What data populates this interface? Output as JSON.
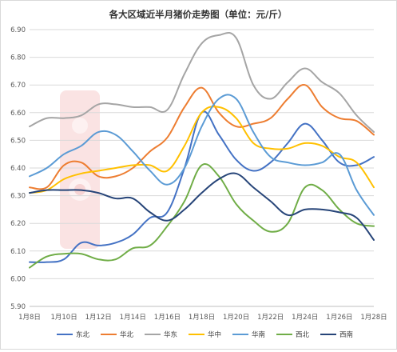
{
  "chart_data": {
    "type": "line",
    "title": "各大区域近半月猪价走势图（单位：元/斤）",
    "xlabel": "",
    "ylabel": "",
    "x": [
      "1月8日",
      "1月9日",
      "1月10日",
      "1月11日",
      "1月12日",
      "1月13日",
      "1月14日",
      "1月15日",
      "1月16日",
      "1月17日",
      "1月18日",
      "1月19日",
      "1月20日",
      "1月21日",
      "1月22日",
      "1月23日",
      "1月24日",
      "1月25日",
      "1月26日",
      "1月27日",
      "1月28日"
    ],
    "x_tick_labels": [
      "1月8日",
      "1月10日",
      "1月12日",
      "1月14日",
      "1月16日",
      "1月18日",
      "1月20日",
      "1月22日",
      "1月24日",
      "1月26日",
      "1月28日"
    ],
    "ylim": [
      5.9,
      6.9
    ],
    "y_tick_labels": [
      "5.90",
      "6.00",
      "6.10",
      "6.20",
      "6.30",
      "6.40",
      "6.50",
      "6.60",
      "6.70",
      "6.80",
      "6.90"
    ],
    "grid": true,
    "legend_position": "bottom",
    "series": [
      {
        "name": "东北",
        "color": "#4472c4",
        "values": [
          6.06,
          6.06,
          6.07,
          6.13,
          6.12,
          6.13,
          6.16,
          6.22,
          6.24,
          6.4,
          6.6,
          6.52,
          6.43,
          6.39,
          6.42,
          6.49,
          6.56,
          6.5,
          6.42,
          6.41,
          6.44
        ]
      },
      {
        "name": "华北",
        "color": "#ed7d31",
        "values": [
          6.33,
          6.33,
          6.41,
          6.42,
          6.37,
          6.37,
          6.4,
          6.46,
          6.51,
          6.62,
          6.69,
          6.6,
          6.55,
          6.56,
          6.58,
          6.65,
          6.7,
          6.62,
          6.58,
          6.57,
          6.52
        ]
      },
      {
        "name": "华东",
        "color": "#a5a5a5",
        "values": [
          6.55,
          6.58,
          6.58,
          6.59,
          6.63,
          6.63,
          6.62,
          6.62,
          6.61,
          6.74,
          6.85,
          6.88,
          6.87,
          6.7,
          6.65,
          6.71,
          6.76,
          6.71,
          6.67,
          6.59,
          6.53
        ]
      },
      {
        "name": "华中",
        "color": "#ffc000",
        "values": [
          6.31,
          6.32,
          6.36,
          6.38,
          6.39,
          6.4,
          6.41,
          6.41,
          6.39,
          6.48,
          6.6,
          6.62,
          6.58,
          6.49,
          6.47,
          6.47,
          6.49,
          6.48,
          6.44,
          6.42,
          6.33
        ]
      },
      {
        "name": "华南",
        "color": "#5b9bd5",
        "values": [
          6.37,
          6.4,
          6.45,
          6.48,
          6.53,
          6.52,
          6.46,
          6.39,
          6.34,
          6.4,
          6.55,
          6.65,
          6.65,
          6.53,
          6.44,
          6.42,
          6.41,
          6.42,
          6.45,
          6.32,
          6.23
        ]
      },
      {
        "name": "西北",
        "color": "#70ad47",
        "values": [
          6.04,
          6.08,
          6.09,
          6.09,
          6.07,
          6.07,
          6.11,
          6.12,
          6.19,
          6.28,
          6.41,
          6.37,
          6.27,
          6.21,
          6.17,
          6.2,
          6.33,
          6.32,
          6.25,
          6.2,
          6.19
        ]
      },
      {
        "name": "西南",
        "color": "#264478",
        "values": [
          6.31,
          6.32,
          6.32,
          6.32,
          6.31,
          6.29,
          6.29,
          6.24,
          6.21,
          6.25,
          6.31,
          6.36,
          6.38,
          6.33,
          6.28,
          6.23,
          6.25,
          6.25,
          6.24,
          6.22,
          6.14
        ]
      }
    ]
  }
}
